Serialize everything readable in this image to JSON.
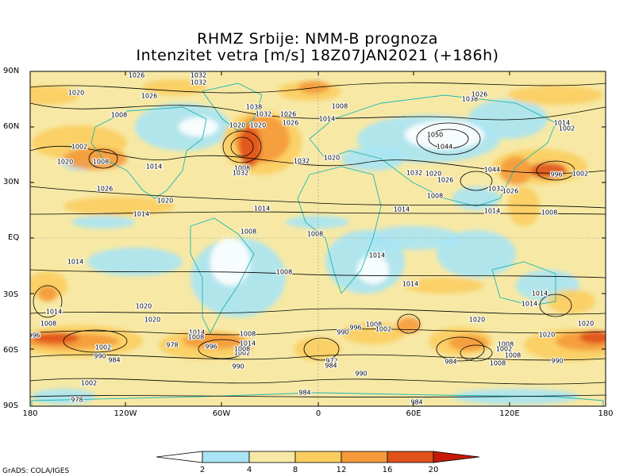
{
  "title": {
    "line1": "RHMZ Srbije: NMM-B prognoza",
    "line2": "Intenzitet vetra [m/s] 18Z07JAN2021 (+186h)"
  },
  "lat_labels": [
    "90N",
    "60N",
    "30N",
    "EQ",
    "30S",
    "60S",
    "90S"
  ],
  "lon_labels": [
    "180",
    "120W",
    "60W",
    "0",
    "60E",
    "120E",
    "180"
  ],
  "colorbar": {
    "labels": [
      "2",
      "4",
      "8",
      "12",
      "16",
      "20"
    ],
    "colors": [
      "#ffffff",
      "#a8e4f4",
      "#f7e9a5",
      "#fbcd61",
      "#f59a3a",
      "#e0521a",
      "#c41a07"
    ]
  },
  "isobar_labels": [
    "1026",
    "1032",
    "1020",
    "1026",
    "1008",
    "1002",
    "1020",
    "1008",
    "1014",
    "1026",
    "1020",
    "1014",
    "1032",
    "1038",
    "1032",
    "1026",
    "1008",
    "1020",
    "1020",
    "1026",
    "1014",
    "1032",
    "1008",
    "1032",
    "1020",
    "1014",
    "1044",
    "1050",
    "1032",
    "1020",
    "1026",
    "1044",
    "1032",
    "1026",
    "1008",
    "1014",
    "1008",
    "1014",
    "1038",
    "1026",
    "1014",
    "1002",
    "996",
    "1002",
    "1008",
    "1008",
    "1014",
    "1014",
    "1008",
    "1014",
    "1014",
    "1020",
    "1020",
    "1020",
    "1008",
    "1014",
    "1008",
    "1002",
    "990",
    "996",
    "1020",
    "1008",
    "1014",
    "1002",
    "1002",
    "990",
    "984",
    "978",
    "1014",
    "1008",
    "1020",
    "1014",
    "1008",
    "996",
    "1008",
    "996",
    "1002",
    "1008",
    "984",
    "990",
    "972",
    "984",
    "1008",
    "1002",
    "990",
    "978",
    "984",
    "984",
    "990"
  ],
  "credit": "GrADS: COLA/IGES"
}
